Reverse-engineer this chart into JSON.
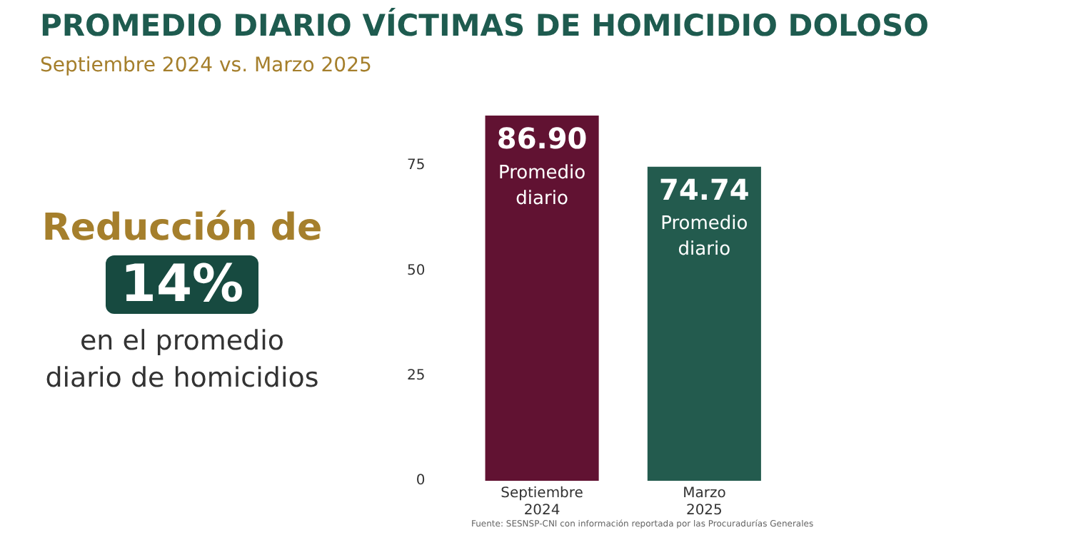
{
  "chart_data": {
    "type": "bar",
    "title": "PROMEDIO DIARIO VÍCTIMAS DE HOMICIDIO DOLOSO",
    "subtitle": "Septiembre 2024 vs. Marzo 2025",
    "categories": [
      "Septiembre 2024",
      "Marzo 2025"
    ],
    "values": [
      86.9,
      74.74
    ],
    "colors": [
      "#611232",
      "#235b4e"
    ],
    "value_labels": [
      "86.90",
      "74.74"
    ],
    "ylim": [
      0,
      86.9
    ],
    "yticks": [
      0,
      25,
      50,
      75
    ],
    "grid": false,
    "legend": false,
    "annotations": [
      "Reducción de",
      "14%",
      "en el promedio diario de homicidios",
      {
        "text": "Promedio diario",
        "x": "Septiembre 2024",
        "y": 86.9
      },
      {
        "text": "Promedio diario",
        "x": "Marzo 2025",
        "y": 74.74
      },
      "Fuente: SESNSP-CNI con información reportada por las Procuradurías Generales"
    ]
  }
}
